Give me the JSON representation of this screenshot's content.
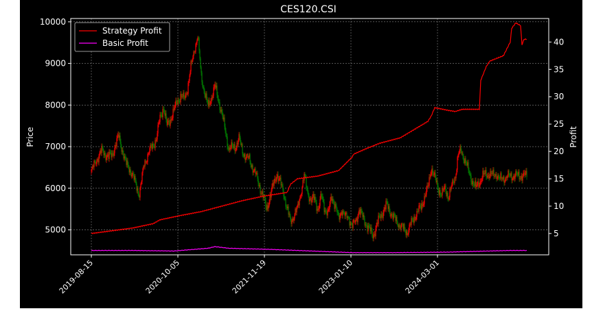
{
  "chart_data": {
    "type": "line",
    "title": "CES120.CSI",
    "xlabel": "",
    "ylabel_left": "Price",
    "ylabel_right": "Profit",
    "x_ticks": [
      "2019-08-15",
      "2020-10-05",
      "2021-11-19",
      "2023-01-10",
      "2024-03-01"
    ],
    "y_left_ticks": [
      5000,
      6000,
      7000,
      8000,
      9000,
      10000
    ],
    "y_right_ticks": [
      5,
      10,
      15,
      20,
      25,
      30,
      35,
      40
    ],
    "y_left_range": [
      4400,
      10080
    ],
    "y_right_range": [
      1.1,
      44.3
    ],
    "grid": true,
    "legend_position": "top-left",
    "colors": {
      "background": "#000000",
      "strategy": "#ff0000",
      "basic": "#ff00ff",
      "candle_up": "#ff0000",
      "candle_down": "#008000",
      "grid": "#888888"
    },
    "price_series": {
      "x": [
        0,
        8,
        15,
        25,
        30,
        40,
        50,
        55,
        65,
        70,
        77,
        85,
        95,
        100,
        105,
        110,
        115,
        120,
        125,
        130,
        135,
        140,
        145,
        150,
        155,
        160,
        165,
        170,
        175,
        180,
        190,
        200,
        210,
        215,
        220,
        225,
        230,
        240,
        250,
        255,
        262,
        270,
        280,
        285,
        290,
        300,
        310,
        315,
        320,
        325,
        330,
        335,
        340,
        345,
        350,
        355,
        360,
        365,
        370,
        375,
        380,
        385,
        390,
        395,
        400,
        410,
        420,
        430,
        440,
        450,
        460,
        470,
        480,
        490,
        495,
        500,
        505,
        510,
        515,
        520,
        525,
        530,
        534,
        538,
        545,
        550,
        560,
        570,
        580,
        585,
        590,
        595,
        600,
        610,
        620,
        630,
        634
      ],
      "values": [
        6400,
        6700,
        6900,
        6750,
        6800,
        7250,
        6600,
        6500,
        6100,
        5850,
        6600,
        6900,
        7200,
        7700,
        7950,
        7500,
        7650,
        7850,
        8100,
        8200,
        8150,
        8400,
        8900,
        9350,
        9650,
        8700,
        8300,
        7950,
        8200,
        8450,
        7800,
        6950,
        7000,
        7200,
        6900,
        6750,
        6700,
        6300,
        5800,
        5500,
        5900,
        6350,
        5900,
        5500,
        5200,
        5500,
        6300,
        5900,
        5700,
        5750,
        5500,
        5800,
        5500,
        5400,
        5800,
        5600,
        5250,
        5500,
        5300,
        5300,
        5100,
        5200,
        5500,
        5300,
        5150,
        4850,
        5300,
        5600,
        5300,
        5100,
        4950,
        5300,
        5550,
        6000,
        6500,
        6250,
        6000,
        5850,
        6000,
        5800,
        6050,
        6300,
        6800,
        6900,
        6650,
        6350,
        6000,
        6300,
        6350,
        6300,
        6350,
        6200,
        6250,
        6300,
        6300,
        6300,
        6300
      ]
    },
    "series": [
      {
        "name": "Strategy Profit",
        "x": [
          0,
          30,
          60,
          90,
          100,
          130,
          160,
          190,
          220,
          250,
          285,
          290,
          300,
          330,
          360,
          380,
          382,
          400,
          420,
          450,
          470,
          490,
          495,
          500,
          520,
          530,
          540,
          565,
          567,
          575,
          580,
          600,
          610,
          612,
          615,
          618,
          625,
          627,
          630,
          634
        ],
        "values": [
          5.0,
          5.5,
          6.0,
          6.8,
          7.5,
          8.3,
          9.0,
          10.0,
          11.0,
          11.8,
          12.5,
          14.0,
          15.0,
          15.5,
          16.5,
          19.0,
          19.5,
          20.5,
          21.5,
          22.5,
          24.0,
          25.5,
          26.5,
          28.0,
          27.5,
          27.3,
          27.7,
          27.7,
          33.0,
          35.5,
          36.5,
          37.5,
          40.0,
          42.5,
          43.0,
          43.5,
          43.0,
          39.5,
          40.5,
          40.5
        ]
      },
      {
        "name": "Basic Profit",
        "x": [
          0,
          60,
          120,
          170,
          180,
          200,
          260,
          320,
          380,
          440,
          520,
          580,
          610,
          625,
          634
        ],
        "values": [
          1.9,
          1.9,
          1.8,
          2.3,
          2.6,
          2.3,
          2.1,
          1.8,
          1.5,
          1.5,
          1.6,
          1.8,
          1.9,
          1.9,
          1.9
        ]
      }
    ]
  }
}
